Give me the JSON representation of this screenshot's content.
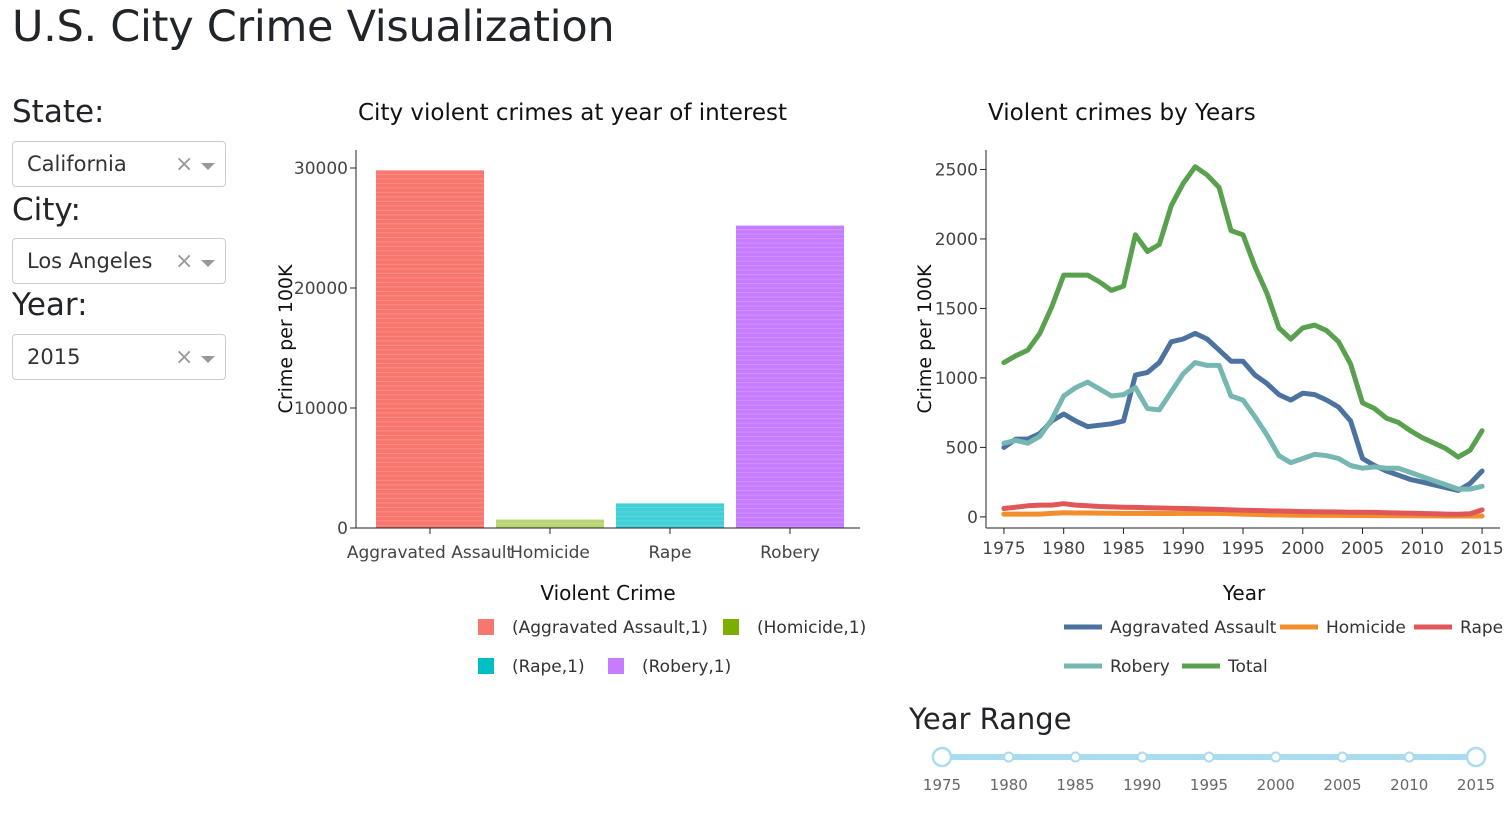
{
  "page": {
    "title": "U.S. City Crime Visualization"
  },
  "controls": {
    "state": {
      "label": "State:",
      "value": "California",
      "clear": "×"
    },
    "city": {
      "label": "City:",
      "value": "Los Angeles",
      "clear": "×"
    },
    "year": {
      "label": "Year:",
      "value": "2015",
      "clear": "×"
    }
  },
  "chart_data": [
    {
      "type": "bar",
      "title": "City violent crimes at year of interest",
      "xlabel": "Violent Crime",
      "ylabel": "Crime per 100K",
      "ylim": [
        0,
        31500
      ],
      "yticks": [
        0,
        10000,
        20000,
        30000
      ],
      "categories": [
        "Aggravated Assault",
        "Homicide",
        "Rape",
        "Robery"
      ],
      "values": [
        29800,
        700,
        2050,
        25200
      ],
      "colors": [
        "#f8766d",
        "#bad674",
        "#3fcfd6",
        "#c77cff"
      ],
      "legend": [
        {
          "label": "(Aggravated Assault,1)",
          "color": "#f8766d"
        },
        {
          "label": "(Homicide,1)",
          "color": "#7cae00"
        },
        {
          "label": "(Rape,1)",
          "color": "#00bfc4"
        },
        {
          "label": "(Robery,1)",
          "color": "#c77cff"
        }
      ],
      "legend_position": "bottom"
    },
    {
      "type": "line",
      "title": "Violent crimes by Years",
      "xlabel": "Year",
      "ylabel": "Crime per 100K",
      "xlim": [
        1973.5,
        1976.5
      ],
      "ylim": [
        -80,
        2640
      ],
      "xticks": [
        1975,
        1980,
        1985,
        1990,
        1995,
        2000,
        2005,
        2010,
        2015
      ],
      "yticks": [
        0,
        500,
        1000,
        1500,
        2000,
        2500
      ],
      "x": [
        1975,
        1976,
        1977,
        1978,
        1979,
        1980,
        1981,
        1982,
        1983,
        1984,
        1985,
        1986,
        1987,
        1988,
        1989,
        1990,
        1991,
        1992,
        1993,
        1994,
        1995,
        1996,
        1997,
        1998,
        1999,
        2000,
        2001,
        2002,
        2003,
        2004,
        2005,
        2006,
        2007,
        2008,
        2009,
        2010,
        2011,
        2012,
        2013,
        2014,
        2015
      ],
      "series": [
        {
          "name": "Aggravated Assault",
          "color": "#4c72a0",
          "values": [
            500,
            560,
            560,
            600,
            690,
            740,
            690,
            650,
            660,
            670,
            690,
            1020,
            1040,
            1110,
            1260,
            1280,
            1320,
            1280,
            1200,
            1120,
            1120,
            1020,
            960,
            880,
            840,
            890,
            880,
            840,
            790,
            690,
            420,
            370,
            330,
            300,
            270,
            250,
            230,
            210,
            190,
            240,
            330
          ]
        },
        {
          "name": "Homicide",
          "color": "#f28e2b",
          "values": [
            20,
            20,
            20,
            20,
            25,
            30,
            28,
            28,
            27,
            26,
            25,
            25,
            25,
            24,
            24,
            25,
            25,
            25,
            25,
            23,
            20,
            18,
            15,
            14,
            13,
            12,
            12,
            11,
            11,
            10,
            10,
            9,
            9,
            8,
            8,
            7,
            7,
            6,
            6,
            6,
            6
          ]
        },
        {
          "name": "Rape",
          "color": "#e15759",
          "values": [
            60,
            70,
            80,
            85,
            85,
            95,
            85,
            80,
            75,
            72,
            70,
            68,
            66,
            64,
            62,
            60,
            58,
            56,
            54,
            50,
            48,
            46,
            44,
            42,
            40,
            38,
            37,
            36,
            35,
            34,
            33,
            32,
            30,
            28,
            26,
            24,
            22,
            20,
            19,
            22,
            50
          ]
        },
        {
          "name": "Robery",
          "color": "#76b7b2",
          "values": [
            530,
            550,
            530,
            580,
            700,
            870,
            930,
            970,
            920,
            870,
            880,
            930,
            780,
            770,
            900,
            1030,
            1110,
            1090,
            1090,
            870,
            840,
            720,
            590,
            440,
            390,
            420,
            450,
            440,
            420,
            370,
            350,
            360,
            350,
            350,
            320,
            290,
            260,
            230,
            200,
            200,
            220
          ]
        },
        {
          "name": "Total",
          "color": "#59a14f",
          "values": [
            1110,
            1160,
            1200,
            1320,
            1510,
            1740,
            1740,
            1740,
            1690,
            1630,
            1660,
            2030,
            1910,
            1960,
            2240,
            2400,
            2520,
            2460,
            2370,
            2060,
            2030,
            1800,
            1610,
            1360,
            1280,
            1360,
            1380,
            1340,
            1260,
            1100,
            820,
            780,
            710,
            680,
            620,
            570,
            530,
            490,
            430,
            480,
            620
          ]
        }
      ],
      "legend_position": "bottom"
    }
  ],
  "year_range": {
    "title": "Year Range",
    "min": 1975,
    "max": 2015,
    "selected": [
      1975,
      2015
    ],
    "marks": [
      "1975",
      "1980",
      "1985",
      "1990",
      "1995",
      "2000",
      "2005",
      "2010",
      "2015"
    ],
    "color": "#a8dcee"
  }
}
